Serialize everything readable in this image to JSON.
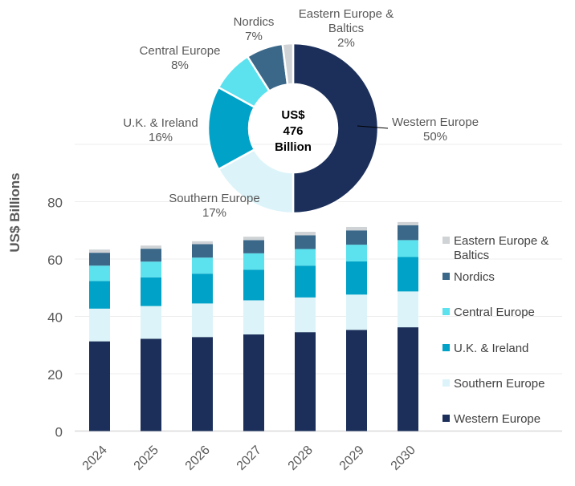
{
  "chart_data": [
    {
      "type": "bar",
      "stacked": true,
      "ylabel": "US$ Billions",
      "ylim": [
        0,
        100
      ],
      "yticks": [
        0,
        20,
        40,
        60,
        80
      ],
      "grid": true,
      "legend_position": "right",
      "categories": [
        "2024",
        "2025",
        "2026",
        "2027",
        "2028",
        "2029",
        "2030"
      ],
      "series": [
        {
          "name": "Western Europe",
          "color": "#1b2f5a",
          "values": [
            31.3,
            32.2,
            32.8,
            33.7,
            34.5,
            35.3,
            36.2
          ]
        },
        {
          "name": "Southern Europe",
          "color": "#dcf4f9",
          "values": [
            11.4,
            11.4,
            11.7,
            11.9,
            12.1,
            12.3,
            12.5
          ]
        },
        {
          "name": "U.K. & Ireland",
          "color": "#00a2c7",
          "values": [
            9.6,
            10.0,
            10.4,
            10.7,
            11.1,
            11.6,
            12.0
          ]
        },
        {
          "name": "Central Europe",
          "color": "#5ce1ee",
          "values": [
            5.4,
            5.5,
            5.6,
            5.7,
            5.8,
            5.8,
            5.9
          ]
        },
        {
          "name": "Nordics",
          "color": "#3b6889",
          "values": [
            4.5,
            4.5,
            4.7,
            4.6,
            4.8,
            5.0,
            5.2
          ]
        },
        {
          "name": "Eastern Europe & Baltics",
          "color": "#cfd3d5",
          "values": [
            1.1,
            1.1,
            1.0,
            1.2,
            1.2,
            1.2,
            1.1
          ]
        }
      ],
      "legend": [
        {
          "name": "Eastern Europe &",
          "name2": "Baltics",
          "color": "#cfd3d5"
        },
        {
          "name": "Nordics",
          "color": "#3b6889"
        },
        {
          "name": "Central Europe",
          "color": "#5ce1ee"
        },
        {
          "name": "U.K. & Ireland",
          "color": "#00a2c7"
        },
        {
          "name": "Southern Europe",
          "color": "#dcf4f9"
        },
        {
          "name": "Western Europe",
          "color": "#1b2f5a"
        }
      ]
    },
    {
      "type": "pie",
      "donut": true,
      "center_label": [
        "US$",
        "476",
        "Billion"
      ],
      "slices": [
        {
          "name": "Western Europe",
          "value": 50,
          "label": "50%",
          "color": "#1b2f5a"
        },
        {
          "name": "Southern Europe",
          "value": 17,
          "label": "17%",
          "color": "#dcf4f9"
        },
        {
          "name": "U.K. &  Ireland",
          "value": 16,
          "label": "16%",
          "color": "#00a2c7"
        },
        {
          "name": "Central Europe",
          "value": 8,
          "label": "8%",
          "color": "#5ce1ee"
        },
        {
          "name": "Nordics",
          "value": 7,
          "label": "7%",
          "color": "#3b6889"
        },
        {
          "name": "Eastern Europe &|Baltics",
          "value": 2,
          "label": "2%",
          "color": "#cfd3d5"
        }
      ]
    }
  ]
}
